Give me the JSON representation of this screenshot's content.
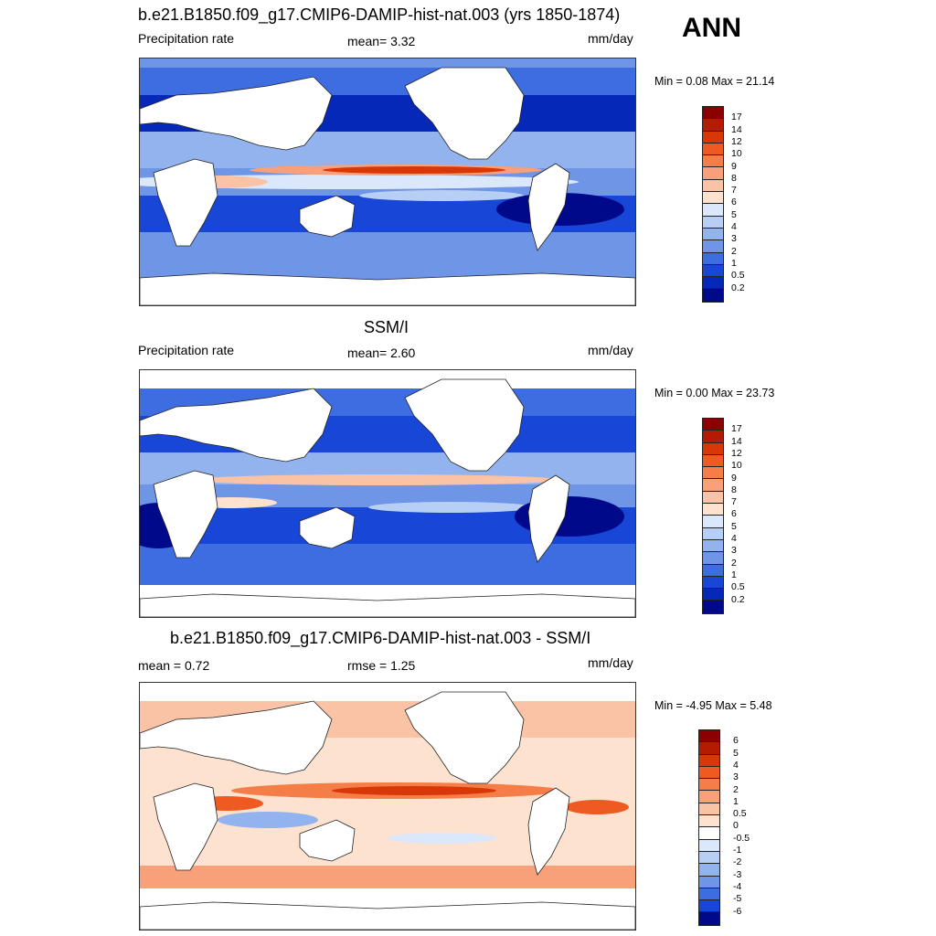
{
  "season": "ANN",
  "panels": [
    {
      "title": "b.e21.B1850.f09_g17.CMIP6-DAMIP-hist-nat.003 (yrs 1850-1874)",
      "left_label": "Precipitation rate",
      "center_label": "mean=   3.32",
      "units": "mm/day",
      "minmax": "Min =   0.08 Max =  21.14",
      "colorbar": {
        "labels": [
          "17",
          "14",
          "12",
          "10",
          "9",
          "8",
          "7",
          "6",
          "5",
          "4",
          "3",
          "2",
          "1",
          "0.5",
          "0.2"
        ],
        "colors": [
          "#8b0000",
          "#b31c00",
          "#d83808",
          "#ee5a22",
          "#f47d48",
          "#f8a07a",
          "#fbc3a5",
          "#fde2d0",
          "#dbe8fb",
          "#b8cff5",
          "#93b3ee",
          "#6f96e6",
          "#3d6de0",
          "#1846d6",
          "#0528b8",
          "#00098a"
        ]
      }
    },
    {
      "title": "SSM/I",
      "left_label": "Precipitation rate",
      "center_label": "mean=   2.60",
      "units": "mm/day",
      "minmax": "Min =   0.00 Max =  23.73",
      "colorbar": {
        "labels": [
          "17",
          "14",
          "12",
          "10",
          "9",
          "8",
          "7",
          "6",
          "5",
          "4",
          "3",
          "2",
          "1",
          "0.5",
          "0.2"
        ],
        "colors": [
          "#8b0000",
          "#b31c00",
          "#d83808",
          "#ee5a22",
          "#f47d48",
          "#f8a07a",
          "#fbc3a5",
          "#fde2d0",
          "#dbe8fb",
          "#b8cff5",
          "#93b3ee",
          "#6f96e6",
          "#3d6de0",
          "#1846d6",
          "#0528b8",
          "#00098a"
        ]
      }
    },
    {
      "title": "b.e21.B1850.f09_g17.CMIP6-DAMIP-hist-nat.003 - SSM/I",
      "left_label": "mean =   0.72",
      "center_label": "rmse =   1.25",
      "units": "mm/day",
      "minmax": "Min =  -4.95 Max =   5.48",
      "colorbar": {
        "labels": [
          "6",
          "5",
          "4",
          "3",
          "2",
          "1",
          "0.5",
          "0",
          "-0.5",
          "-1",
          "-2",
          "-3",
          "-4",
          "-5",
          "-6"
        ],
        "colors": [
          "#8b0000",
          "#b31c00",
          "#d83808",
          "#ee5a22",
          "#f47d48",
          "#f8a07a",
          "#fbc3a5",
          "#fde2d0",
          "#ffffff",
          "#dbe8fb",
          "#b8cff5",
          "#93b3ee",
          "#6f96e6",
          "#3d6de0",
          "#1846d6",
          "#00098a"
        ]
      }
    }
  ]
}
